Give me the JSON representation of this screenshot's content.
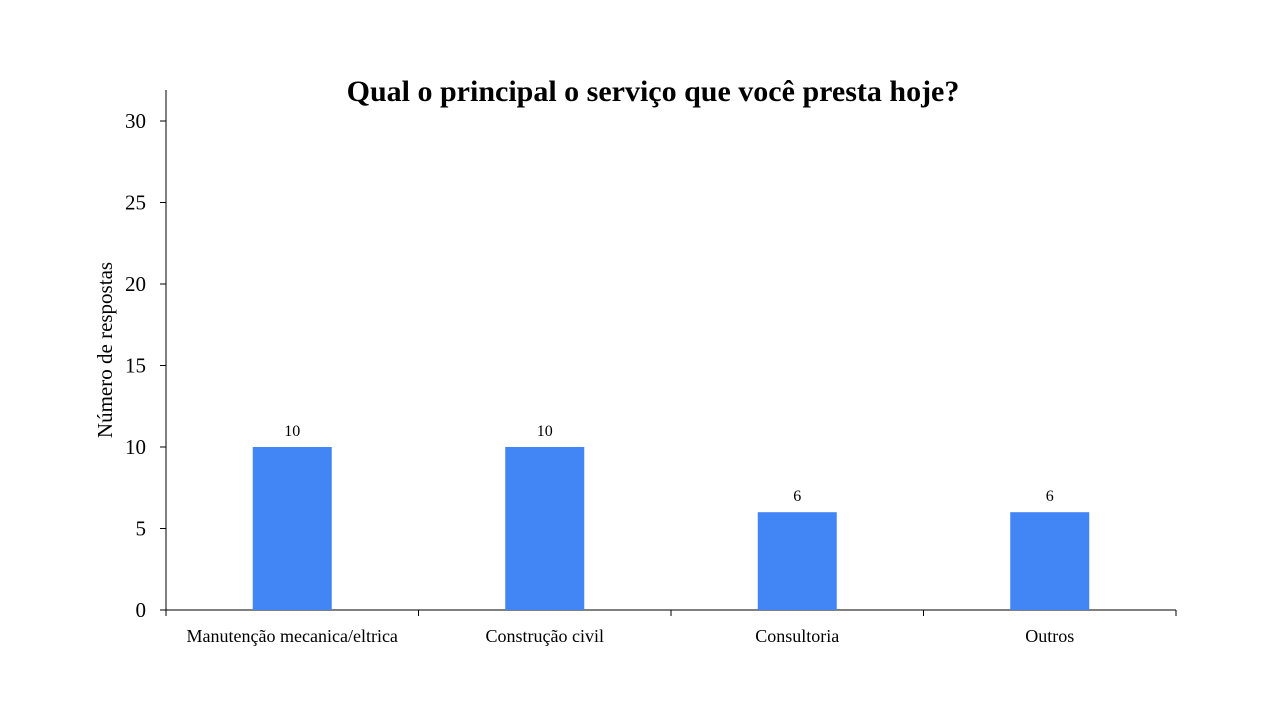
{
  "chart_data": {
    "type": "bar",
    "title": "Qual o principal o serviço que você presta hoje?",
    "xlabel": "",
    "ylabel": "Número de respostas",
    "categories": [
      "Manutenção mecanica/eltrica",
      "Construção civil",
      "Consultoria",
      "Outros"
    ],
    "values": [
      10,
      10,
      6,
      6
    ],
    "data_labels": [
      "10",
      "10",
      "6",
      "6"
    ],
    "ylim": [
      0,
      30
    ],
    "yticks": [
      0,
      5,
      10,
      15,
      20,
      25,
      30
    ],
    "ytick_labels": [
      "0",
      "5",
      "10",
      "15",
      "20",
      "25",
      "30"
    ],
    "grid": false,
    "legend": "none",
    "bar_color": "#4285F4"
  }
}
